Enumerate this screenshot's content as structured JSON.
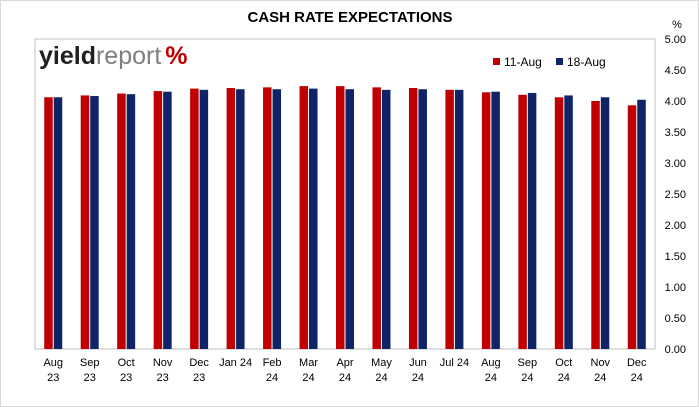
{
  "chart_data": {
    "type": "bar",
    "title": "CASH RATE EXPECTATIONS",
    "ylabel": "%",
    "ylim": [
      0,
      5
    ],
    "yticks": [
      "0.00",
      "0.50",
      "1.00",
      "1.50",
      "2.00",
      "2.50",
      "3.00",
      "3.50",
      "4.00",
      "4.50",
      "5.00"
    ],
    "grid": false,
    "legend_position": "top-right",
    "categories": [
      [
        "Aug",
        "23"
      ],
      [
        "Sep",
        "23"
      ],
      [
        "Oct",
        "23"
      ],
      [
        "Nov",
        "23"
      ],
      [
        "Dec",
        "23"
      ],
      [
        "Jan 24",
        ""
      ],
      [
        "Feb",
        "24"
      ],
      [
        "Mar",
        "24"
      ],
      [
        "Apr",
        "24"
      ],
      [
        "May",
        "24"
      ],
      [
        "Jun",
        "24"
      ],
      [
        "Jul 24",
        ""
      ],
      [
        "Aug",
        "24"
      ],
      [
        "Sep",
        "24"
      ],
      [
        "Oct",
        "24"
      ],
      [
        "Nov",
        "24"
      ],
      [
        "Dec",
        "24"
      ]
    ],
    "series": [
      {
        "name": "11-Aug",
        "color": "#c00000",
        "values": [
          4.06,
          4.09,
          4.12,
          4.16,
          4.2,
          4.21,
          4.22,
          4.24,
          4.24,
          4.22,
          4.21,
          4.18,
          4.14,
          4.1,
          4.06,
          4.0,
          3.93
        ]
      },
      {
        "name": "18-Aug",
        "color": "#0f2467",
        "values": [
          4.06,
          4.08,
          4.11,
          4.15,
          4.18,
          4.19,
          4.19,
          4.2,
          4.19,
          4.18,
          4.19,
          4.18,
          4.15,
          4.13,
          4.09,
          4.06,
          4.02
        ]
      }
    ]
  },
  "logo": {
    "part1": "yield",
    "part2": "report",
    "part3": "%",
    "pct_colors": [
      "#2e7d32",
      "#c00000"
    ]
  }
}
